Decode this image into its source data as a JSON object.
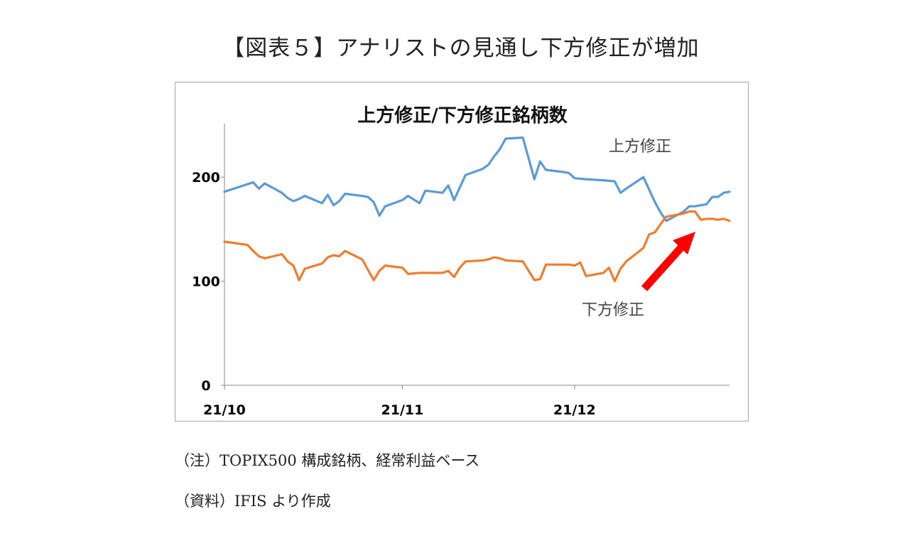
{
  "figure_title": "【図表５】アナリストの見通し下方修正が増加",
  "notes": {
    "note": "（注）TOPIX500 構成銘柄、経常利益ベース",
    "source": "（資料）IFIS より作成"
  },
  "chart_data": {
    "type": "line",
    "title": "上方修正/下方修正銘柄数",
    "xlabel": "",
    "ylabel": "",
    "ylim": [
      0,
      250
    ],
    "yticks": [
      0,
      100,
      200
    ],
    "x_tick_labels": [
      {
        "label": "21/10",
        "date": "2021-10-01"
      },
      {
        "label": "21/11",
        "date": "2021-11-01"
      },
      {
        "label": "21/12",
        "date": "2021-12-01"
      }
    ],
    "x_range": [
      "2021-10-01",
      "2021-12-28"
    ],
    "series": [
      {
        "name": "上方修正",
        "color": "#5b9bd5",
        "points": [
          [
            "2021-10-01",
            186
          ],
          [
            "2021-10-06",
            195
          ],
          [
            "2021-10-07",
            189
          ],
          [
            "2021-10-08",
            194
          ],
          [
            "2021-10-11",
            185
          ],
          [
            "2021-10-12",
            180
          ],
          [
            "2021-10-13",
            177
          ],
          [
            "2021-10-14",
            179
          ],
          [
            "2021-10-15",
            182
          ],
          [
            "2021-10-18",
            175
          ],
          [
            "2021-10-19",
            183
          ],
          [
            "2021-10-20",
            173
          ],
          [
            "2021-10-21",
            177
          ],
          [
            "2021-10-22",
            184
          ],
          [
            "2021-10-25",
            182
          ],
          [
            "2021-10-26",
            181
          ],
          [
            "2021-10-27",
            176
          ],
          [
            "2021-10-28",
            163
          ],
          [
            "2021-10-29",
            172
          ],
          [
            "2021-11-01",
            178
          ],
          [
            "2021-11-02",
            182
          ],
          [
            "2021-11-04",
            175
          ],
          [
            "2021-11-05",
            187
          ],
          [
            "2021-11-08",
            185
          ],
          [
            "2021-11-09",
            192
          ],
          [
            "2021-11-10",
            178
          ],
          [
            "2021-11-12",
            202
          ],
          [
            "2021-11-15",
            208
          ],
          [
            "2021-11-16",
            212
          ],
          [
            "2021-11-17",
            220
          ],
          [
            "2021-11-18",
            227
          ],
          [
            "2021-11-19",
            237
          ],
          [
            "2021-11-22",
            238
          ],
          [
            "2021-11-24",
            198
          ],
          [
            "2021-11-25",
            215
          ],
          [
            "2021-11-26",
            207
          ],
          [
            "2021-11-29",
            205
          ],
          [
            "2021-11-30",
            204
          ],
          [
            "2021-12-01",
            199
          ],
          [
            "2021-12-03",
            198
          ],
          [
            "2021-12-06",
            197
          ],
          [
            "2021-12-08",
            196
          ],
          [
            "2021-12-09",
            185
          ],
          [
            "2021-12-10",
            189
          ],
          [
            "2021-12-13",
            200
          ],
          [
            "2021-12-14",
            188
          ],
          [
            "2021-12-15",
            176
          ],
          [
            "2021-12-16",
            166
          ],
          [
            "2021-12-17",
            158
          ],
          [
            "2021-12-20",
            167
          ],
          [
            "2021-12-21",
            172
          ],
          [
            "2021-12-22",
            172
          ],
          [
            "2021-12-23",
            173
          ],
          [
            "2021-12-24",
            174
          ],
          [
            "2021-12-25",
            181
          ],
          [
            "2021-12-26",
            181
          ],
          [
            "2021-12-27",
            185
          ],
          [
            "2021-12-28",
            186
          ]
        ]
      },
      {
        "name": "下方修正",
        "color": "#ed7d31",
        "points": [
          [
            "2021-10-01",
            138
          ],
          [
            "2021-10-05",
            135
          ],
          [
            "2021-10-06",
            129
          ],
          [
            "2021-10-07",
            124
          ],
          [
            "2021-10-08",
            122
          ],
          [
            "2021-10-11",
            126
          ],
          [
            "2021-10-12",
            119
          ],
          [
            "2021-10-13",
            115
          ],
          [
            "2021-10-14",
            101
          ],
          [
            "2021-10-15",
            112
          ],
          [
            "2021-10-18",
            117
          ],
          [
            "2021-10-19",
            123
          ],
          [
            "2021-10-20",
            125
          ],
          [
            "2021-10-21",
            124
          ],
          [
            "2021-10-22",
            129
          ],
          [
            "2021-10-25",
            121
          ],
          [
            "2021-10-26",
            111
          ],
          [
            "2021-10-27",
            101
          ],
          [
            "2021-10-28",
            110
          ],
          [
            "2021-10-29",
            115
          ],
          [
            "2021-11-01",
            113
          ],
          [
            "2021-11-02",
            107
          ],
          [
            "2021-11-04",
            108
          ],
          [
            "2021-11-05",
            108
          ],
          [
            "2021-11-08",
            108
          ],
          [
            "2021-11-09",
            110
          ],
          [
            "2021-11-10",
            104
          ],
          [
            "2021-11-11",
            113
          ],
          [
            "2021-11-12",
            119
          ],
          [
            "2021-11-15",
            120
          ],
          [
            "2021-11-16",
            121
          ],
          [
            "2021-11-17",
            123
          ],
          [
            "2021-11-18",
            122
          ],
          [
            "2021-11-19",
            120
          ],
          [
            "2021-11-22",
            119
          ],
          [
            "2021-11-24",
            101
          ],
          [
            "2021-11-25",
            102
          ],
          [
            "2021-11-26",
            116
          ],
          [
            "2021-11-29",
            116
          ],
          [
            "2021-11-30",
            116
          ],
          [
            "2021-12-01",
            115
          ],
          [
            "2021-12-02",
            118
          ],
          [
            "2021-12-03",
            105
          ],
          [
            "2021-12-06",
            108
          ],
          [
            "2021-12-07",
            113
          ],
          [
            "2021-12-08",
            100
          ],
          [
            "2021-12-09",
            112
          ],
          [
            "2021-12-10",
            119
          ],
          [
            "2021-12-13",
            132
          ],
          [
            "2021-12-14",
            145
          ],
          [
            "2021-12-15",
            147
          ],
          [
            "2021-12-16",
            155
          ],
          [
            "2021-12-17",
            162
          ],
          [
            "2021-12-20",
            165
          ],
          [
            "2021-12-21",
            167
          ],
          [
            "2021-12-22",
            167
          ],
          [
            "2021-12-23",
            159
          ],
          [
            "2021-12-24",
            160
          ],
          [
            "2021-12-25",
            160
          ],
          [
            "2021-12-26",
            159
          ],
          [
            "2021-12-27",
            160
          ],
          [
            "2021-12-28",
            158
          ]
        ]
      }
    ],
    "annotations": [
      {
        "text": "上方修正",
        "color": "#444444"
      },
      {
        "text": "下方修正",
        "color": "#444444"
      },
      {
        "type": "arrow",
        "color": "#ff0000"
      }
    ]
  }
}
